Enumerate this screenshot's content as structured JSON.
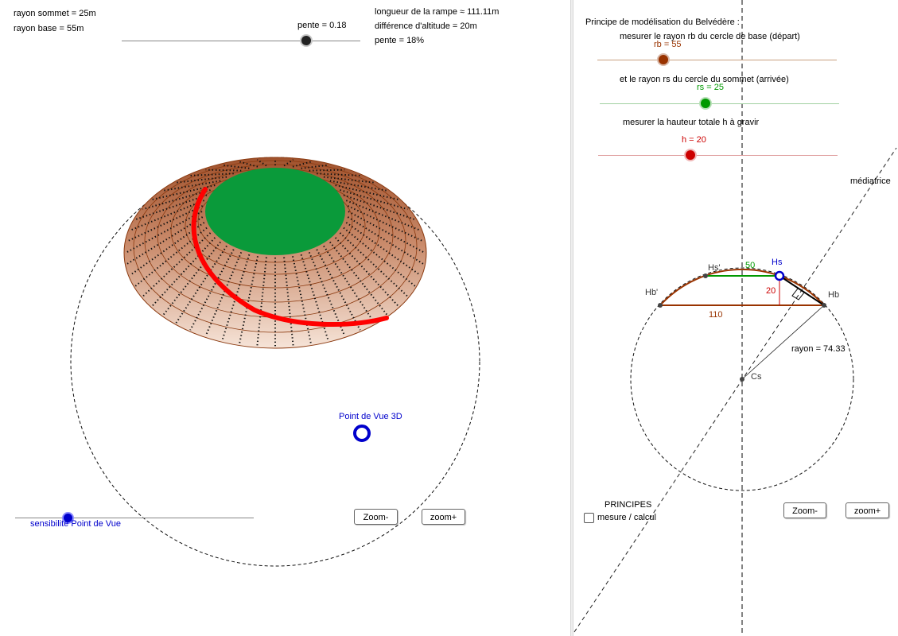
{
  "left_panel": {
    "rayon_sommet": "rayon sommet  = 25m",
    "rayon_base": "rayon base       = 55m",
    "pente_slider_label": "pente = 0.18",
    "longueur_rampe": "longueur de la rampe ≈ 111.11m",
    "difference_altitude": "différence d'altitude     = 20m",
    "pente_value": "pente                   = 18%",
    "point_de_vue_label": "Point de Vue 3D",
    "sensibilite_label": "sensibilité Point de Vue",
    "zoom_minus": "Zoom-",
    "zoom_plus": "zoom+"
  },
  "right_panel": {
    "title": "Principe de modélisation du Belvédère :",
    "step_rb": "mesurer le rayon rb du cercle de base (départ)",
    "rb_value": "rb = 55",
    "step_rs": "et le rayon rs du cercle du sommet (arrivée)",
    "rs_value": "rs = 25",
    "step_h": "mesurer la hauteur totale h à gravir",
    "h_value": "h = 20",
    "mediatrice": "médiatrice",
    "label_hs_prime": "Hs'",
    "label_hs": "Hs",
    "label_hb_prime": "Hb'",
    "label_hb": "Hb",
    "label_cs": "Cs",
    "dim_50": "50",
    "dim_20": "20",
    "dim_110": "110",
    "rayon": "rayon = 74.33",
    "principes": "PRINCIPES",
    "mesure_calcul": "mesure / calcul",
    "zoom_minus": "Zoom-",
    "zoom_plus": "zoom+"
  },
  "colors": {
    "rb_brown": "#993300",
    "rs_green": "#009900",
    "h_red": "#cc0000",
    "blue": "#0000cc",
    "top_green": "#0a9a3a",
    "ramp_red": "#ff0000"
  }
}
